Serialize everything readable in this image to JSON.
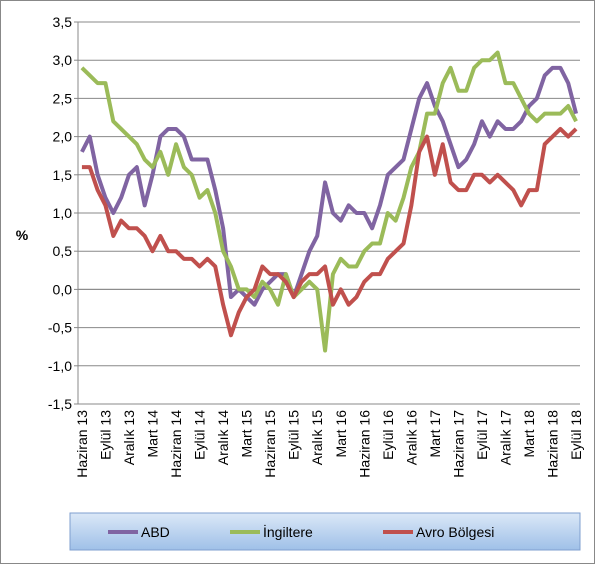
{
  "chart_data": {
    "type": "line",
    "y_label": "%",
    "categories": [
      "Haziran 13",
      null,
      null,
      "Eylül 13",
      null,
      null,
      "Aralık 13",
      null,
      null,
      "Mart 14",
      null,
      null,
      "Haziran 14",
      null,
      null,
      "Eylül 14",
      null,
      null,
      "Aralık 14",
      null,
      null,
      "Mart 15",
      null,
      null,
      "Haziran 15",
      null,
      null,
      "Eylül 15",
      null,
      null,
      "Aralık 15",
      null,
      null,
      "Mart 16",
      null,
      null,
      "Haziran 16",
      null,
      null,
      "Eylül 16",
      null,
      null,
      "Aralık 16",
      null,
      null,
      "Mart 17",
      null,
      null,
      "Haziran 17",
      null,
      null,
      "Eylül 17",
      null,
      null,
      "Aralık 17",
      null,
      null,
      "Mart 18",
      null,
      null,
      "Haziran 18",
      null,
      null,
      "Eylül 18"
    ],
    "series": [
      {
        "name": "ABD",
        "color": "#8064a2",
        "values": [
          1.8,
          2.0,
          1.5,
          1.2,
          1.0,
          1.2,
          1.5,
          1.6,
          1.1,
          1.5,
          2.0,
          2.1,
          2.1,
          2.0,
          1.7,
          1.7,
          1.7,
          1.3,
          0.8,
          -0.1,
          0.0,
          -0.1,
          -0.2,
          0.0,
          0.1,
          0.2,
          0.2,
          -0.1,
          0.2,
          0.5,
          0.7,
          1.4,
          1.0,
          0.9,
          1.1,
          1.0,
          1.0,
          0.8,
          1.1,
          1.5,
          1.6,
          1.7,
          2.1,
          2.5,
          2.7,
          2.4,
          2.2,
          1.9,
          1.6,
          1.7,
          1.9,
          2.2,
          2.0,
          2.2,
          2.1,
          2.1,
          2.2,
          2.4,
          2.5,
          2.8,
          2.9,
          2.9,
          2.7,
          2.3
        ]
      },
      {
        "name": "İngiltere",
        "color": "#9bbb59",
        "values": [
          2.9,
          2.8,
          2.7,
          2.7,
          2.2,
          2.1,
          2.0,
          1.9,
          1.7,
          1.6,
          1.8,
          1.5,
          1.9,
          1.6,
          1.5,
          1.2,
          1.3,
          1.0,
          0.5,
          0.3,
          0.0,
          0.0,
          -0.1,
          0.1,
          0.0,
          -0.2,
          0.2,
          -0.1,
          0.0,
          0.1,
          0.0,
          -0.8,
          0.2,
          0.4,
          0.3,
          0.3,
          0.5,
          0.6,
          0.6,
          1.0,
          0.9,
          1.2,
          1.6,
          1.8,
          2.3,
          2.3,
          2.7,
          2.9,
          2.6,
          2.6,
          2.9,
          3.0,
          3.0,
          3.1,
          2.7,
          2.7,
          2.5,
          2.3,
          2.2,
          2.3,
          2.3,
          2.3,
          2.4,
          2.2
        ]
      },
      {
        "name": "Avro Bölgesi",
        "color": "#c0504d",
        "values": [
          1.6,
          1.6,
          1.3,
          1.1,
          0.7,
          0.9,
          0.8,
          0.8,
          0.7,
          0.5,
          0.7,
          0.5,
          0.5,
          0.4,
          0.4,
          0.3,
          0.4,
          0.3,
          -0.2,
          -0.6,
          -0.3,
          -0.1,
          0.0,
          0.3,
          0.2,
          0.2,
          0.1,
          -0.1,
          0.1,
          0.2,
          0.2,
          0.3,
          -0.2,
          0.0,
          -0.2,
          -0.1,
          0.1,
          0.2,
          0.2,
          0.4,
          0.5,
          0.6,
          1.1,
          1.8,
          2.0,
          1.5,
          1.9,
          1.4,
          1.3,
          1.3,
          1.5,
          1.5,
          1.4,
          1.5,
          1.4,
          1.3,
          1.1,
          1.3,
          1.3,
          1.9,
          2.0,
          2.1,
          2.0,
          2.1
        ]
      }
    ],
    "ylim": [
      -1.5,
      3.5
    ],
    "yticks": [
      {
        "value": -1.5,
        "label": "-1,5"
      },
      {
        "value": -1.0,
        "label": "-1,0"
      },
      {
        "value": -0.5,
        "label": "-0,5"
      },
      {
        "value": 0,
        "label": "0,0"
      },
      {
        "value": 0.5,
        "label": "0,5"
      },
      {
        "value": 1.0,
        "label": "1,0"
      },
      {
        "value": 1.5,
        "label": "1,5"
      },
      {
        "value": 2.0,
        "label": "2,0"
      },
      {
        "value": 2.5,
        "label": "2,5"
      },
      {
        "value": 3.0,
        "label": "3,0"
      },
      {
        "value": 3.5,
        "label": "3,5"
      }
    ],
    "grid": true
  }
}
